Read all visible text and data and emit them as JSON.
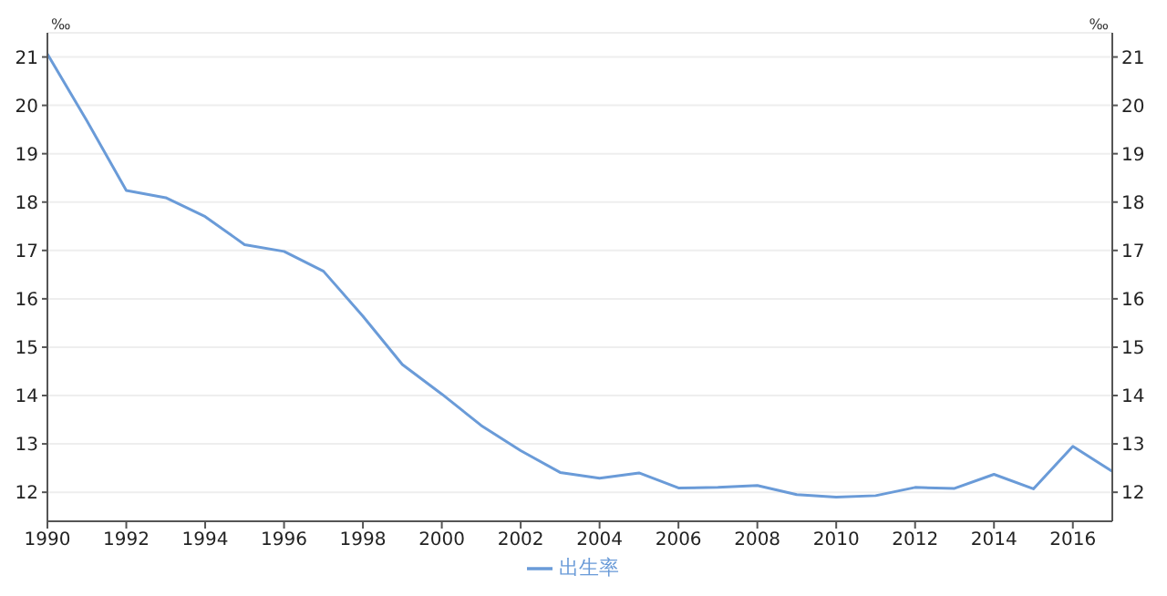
{
  "chart_data": {
    "type": "line",
    "x": [
      1990,
      1991,
      1992,
      1993,
      1994,
      1995,
      1996,
      1997,
      1998,
      1999,
      2000,
      2001,
      2002,
      2003,
      2004,
      2005,
      2006,
      2007,
      2008,
      2009,
      2010,
      2011,
      2012,
      2013,
      2014,
      2015,
      2016,
      2017
    ],
    "series": [
      {
        "name": "出生率",
        "color": "#6a9bd8",
        "values": [
          21.06,
          19.68,
          18.24,
          18.09,
          17.7,
          17.12,
          16.98,
          16.57,
          15.64,
          14.64,
          14.03,
          13.38,
          12.86,
          12.41,
          12.29,
          12.4,
          12.09,
          12.1,
          12.14,
          11.95,
          11.9,
          11.93,
          12.1,
          12.08,
          12.37,
          12.07,
          12.95,
          12.43
        ]
      }
    ],
    "xlim": [
      1990,
      2017
    ],
    "xticks": [
      1990,
      1992,
      1994,
      1996,
      1998,
      2000,
      2002,
      2004,
      2006,
      2008,
      2010,
      2012,
      2014,
      2016
    ],
    "ylim": [
      11.4,
      21.5
    ],
    "yticks": [
      12,
      13,
      14,
      15,
      16,
      17,
      18,
      19,
      20,
      21
    ],
    "ylabel": "‰",
    "y2lim": [
      11.4,
      21.5
    ],
    "y2ticks": [
      12,
      13,
      14,
      15,
      16,
      17,
      18,
      19,
      20,
      21
    ],
    "y2label": "‰",
    "grid": "y",
    "legend": "bottom",
    "marker": "none",
    "line_style": "solid"
  }
}
